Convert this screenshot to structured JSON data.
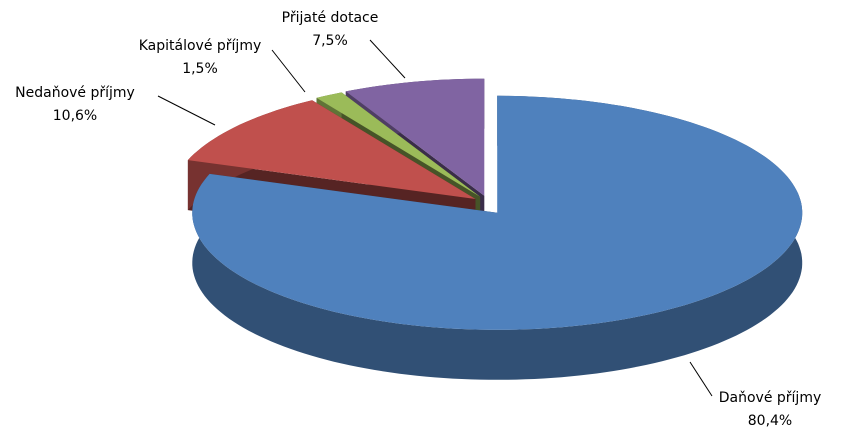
{
  "chart_data": {
    "type": "pie3d",
    "categories": [
      "Daňové příjmy",
      "Nedaňové příjmy",
      "Kapitálové příjmy",
      "Přijaté dotace"
    ],
    "values": [
      80.4,
      10.6,
      1.5,
      7.5
    ],
    "value_labels": [
      "80,4%",
      "10,6%",
      "1,5%",
      "7,5%"
    ],
    "colors": [
      "#4f81bd",
      "#c0504d",
      "#9bbb59",
      "#8064a2"
    ]
  }
}
